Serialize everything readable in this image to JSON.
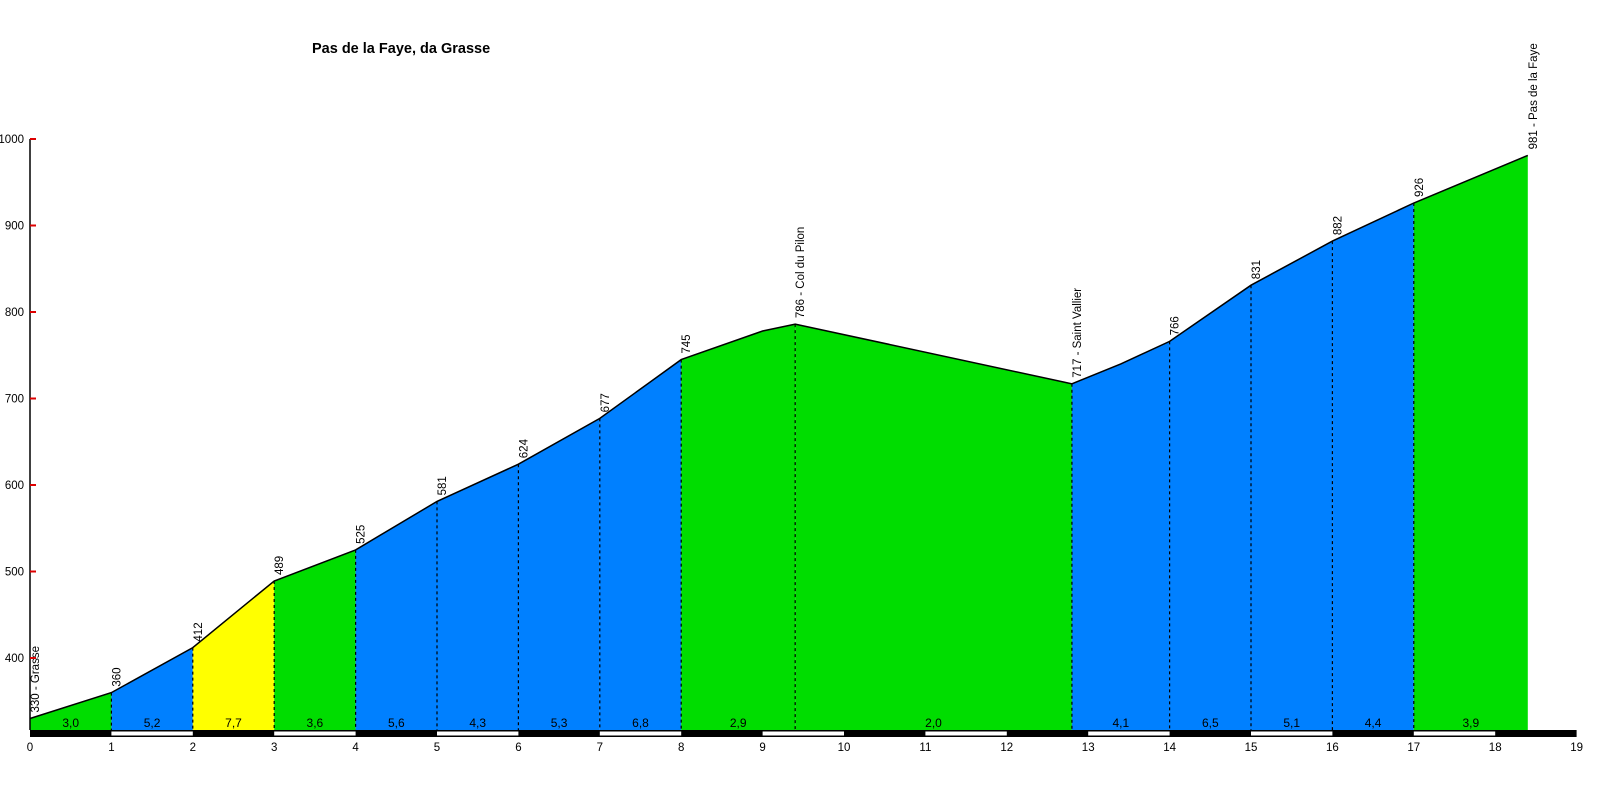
{
  "chart_data": {
    "type": "area",
    "title": "Pas de la Faye, da Grasse",
    "x_unit": "km",
    "y_unit": "m",
    "xlim": [
      0,
      19
    ],
    "ylim": [
      320,
      1000
    ],
    "grid": false,
    "legend": false,
    "x_ticks": [
      0,
      1,
      2,
      3,
      4,
      5,
      6,
      7,
      8,
      9,
      10,
      11,
      12,
      13,
      14,
      15,
      16,
      17,
      18,
      19
    ],
    "y_ticks": [
      400,
      500,
      600,
      700,
      800,
      900,
      1000
    ],
    "profile_points": [
      [
        0,
        330
      ],
      [
        1,
        360
      ],
      [
        2,
        412
      ],
      [
        3,
        489
      ],
      [
        4,
        525
      ],
      [
        5,
        581
      ],
      [
        6,
        624
      ],
      [
        7,
        677
      ],
      [
        8,
        745
      ],
      [
        9,
        778
      ],
      [
        9.4,
        786
      ],
      [
        12.8,
        717
      ],
      [
        13.4,
        740
      ],
      [
        14,
        766
      ],
      [
        15,
        831
      ],
      [
        16,
        882
      ],
      [
        17,
        926
      ],
      [
        18.4,
        981
      ]
    ],
    "markers": [
      {
        "km": 0,
        "elev": 330,
        "label": "330 - Grasse",
        "dash": false
      },
      {
        "km": 1,
        "elev": 360,
        "label": "360",
        "dash": true
      },
      {
        "km": 2,
        "elev": 412,
        "label": "412",
        "dash": true
      },
      {
        "km": 3,
        "elev": 489,
        "label": "489",
        "dash": true
      },
      {
        "km": 4,
        "elev": 525,
        "label": "525",
        "dash": true
      },
      {
        "km": 5,
        "elev": 581,
        "label": "581",
        "dash": true
      },
      {
        "km": 6,
        "elev": 624,
        "label": "624",
        "dash": true
      },
      {
        "km": 7,
        "elev": 677,
        "label": "677",
        "dash": true
      },
      {
        "km": 8,
        "elev": 745,
        "label": "745",
        "dash": true
      },
      {
        "km": 9.4,
        "elev": 786,
        "label": "786 - Col du Pilon",
        "dash": true
      },
      {
        "km": 12.8,
        "elev": 717,
        "label": "717 - Saint Vallier",
        "dash": true
      },
      {
        "km": 14,
        "elev": 766,
        "label": "766",
        "dash": true
      },
      {
        "km": 15,
        "elev": 831,
        "label": "831",
        "dash": true
      },
      {
        "km": 16,
        "elev": 882,
        "label": "882",
        "dash": true
      },
      {
        "km": 17,
        "elev": 926,
        "label": "926",
        "dash": true
      },
      {
        "km": 18.4,
        "elev": 981,
        "label": "981 - Pas de la Faye",
        "dash": false
      }
    ],
    "segments": [
      {
        "from": 0,
        "to": 1,
        "gradient": "3,0",
        "color": "green"
      },
      {
        "from": 1,
        "to": 2,
        "gradient": "5,2",
        "color": "blue"
      },
      {
        "from": 2,
        "to": 3,
        "gradient": "7,7",
        "color": "yellow"
      },
      {
        "from": 3,
        "to": 4,
        "gradient": "3,6",
        "color": "green"
      },
      {
        "from": 4,
        "to": 5,
        "gradient": "5,6",
        "color": "blue"
      },
      {
        "from": 5,
        "to": 6,
        "gradient": "4,3",
        "color": "blue"
      },
      {
        "from": 6,
        "to": 7,
        "gradient": "5,3",
        "color": "blue"
      },
      {
        "from": 7,
        "to": 8,
        "gradient": "6,8",
        "color": "blue"
      },
      {
        "from": 8,
        "to": 9.4,
        "gradient": "2,9",
        "color": "green"
      },
      {
        "from": 9.4,
        "to": 12.8,
        "gradient": "2,0",
        "color": "green"
      },
      {
        "from": 12.8,
        "to": 14,
        "gradient": "4,1",
        "color": "blue"
      },
      {
        "from": 14,
        "to": 15,
        "gradient": "6,5",
        "color": "blue"
      },
      {
        "from": 15,
        "to": 16,
        "gradient": "5,1",
        "color": "blue"
      },
      {
        "from": 16,
        "to": 17,
        "gradient": "4,4",
        "color": "blue"
      },
      {
        "from": 17,
        "to": 18.4,
        "gradient": "3,9",
        "color": "green"
      }
    ],
    "colors": {
      "green": "#00DD00",
      "blue": "#0080FF",
      "yellow": "#FFFF00",
      "outline": "#000000",
      "dash_line": "#000000",
      "axis": "#000000",
      "axis_tick": "#DD0000",
      "km_bar_black": "#000000",
      "km_bar_white": "#FFFFFF",
      "text": "#000000",
      "background": "#FFFFFF"
    }
  }
}
